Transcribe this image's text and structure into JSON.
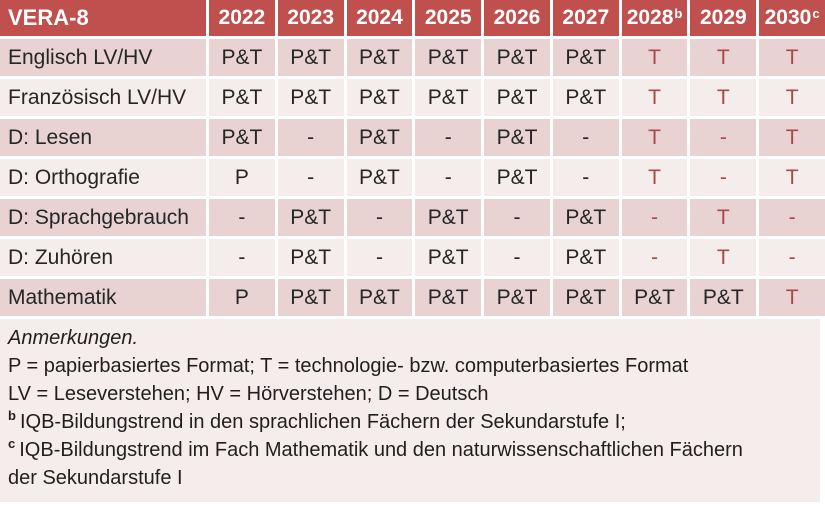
{
  "colors": {
    "header_bg": "#c0504d",
    "row_dark": "#e8d2d2",
    "row_light": "#f5ecec",
    "accent_red": "#a84a47",
    "text": "#262626"
  },
  "table": {
    "title_cell": "VERA-8",
    "columns": [
      {
        "label": "2022"
      },
      {
        "label": "2023"
      },
      {
        "label": "2024"
      },
      {
        "label": "2025"
      },
      {
        "label": "2026"
      },
      {
        "label": "2027"
      },
      {
        "label": "2028",
        "sup": "b"
      },
      {
        "label": "2029"
      },
      {
        "label": "2030",
        "sup": "c"
      }
    ],
    "rows": [
      {
        "label": "Englisch LV/HV",
        "cells": [
          {
            "t": "P&T"
          },
          {
            "t": "P&T"
          },
          {
            "t": "P&T"
          },
          {
            "t": "P&T"
          },
          {
            "t": "P&T"
          },
          {
            "t": "P&T"
          },
          {
            "t": "T",
            "red": true
          },
          {
            "t": "T",
            "red": true
          },
          {
            "t": "T",
            "red": true
          }
        ]
      },
      {
        "label": "Französisch LV/HV",
        "cells": [
          {
            "t": "P&T"
          },
          {
            "t": "P&T"
          },
          {
            "t": "P&T"
          },
          {
            "t": "P&T"
          },
          {
            "t": "P&T"
          },
          {
            "t": "P&T"
          },
          {
            "t": "T",
            "red": true
          },
          {
            "t": "T",
            "red": true
          },
          {
            "t": "T",
            "red": true
          }
        ]
      },
      {
        "label": "D: Lesen",
        "cells": [
          {
            "t": "P&T"
          },
          {
            "t": "-"
          },
          {
            "t": "P&T"
          },
          {
            "t": "-"
          },
          {
            "t": "P&T"
          },
          {
            "t": "-"
          },
          {
            "t": "T",
            "red": true
          },
          {
            "t": "-",
            "red": true
          },
          {
            "t": "T",
            "red": true
          }
        ]
      },
      {
        "label": "D: Orthografie",
        "cells": [
          {
            "t": "P"
          },
          {
            "t": "-"
          },
          {
            "t": "P&T"
          },
          {
            "t": "-"
          },
          {
            "t": "P&T"
          },
          {
            "t": "-"
          },
          {
            "t": "T",
            "red": true
          },
          {
            "t": "-",
            "red": true
          },
          {
            "t": "T",
            "red": true
          }
        ]
      },
      {
        "label": "D: Sprachgebrauch",
        "cells": [
          {
            "t": "-"
          },
          {
            "t": "P&T"
          },
          {
            "t": "-"
          },
          {
            "t": "P&T"
          },
          {
            "t": "-"
          },
          {
            "t": "P&T"
          },
          {
            "t": "-",
            "red": true
          },
          {
            "t": "T",
            "red": true
          },
          {
            "t": "-",
            "red": true
          }
        ]
      },
      {
        "label": "D: Zuhören",
        "cells": [
          {
            "t": "-"
          },
          {
            "t": "P&T"
          },
          {
            "t": "-"
          },
          {
            "t": "P&T"
          },
          {
            "t": "-"
          },
          {
            "t": "P&T"
          },
          {
            "t": "-",
            "red": true
          },
          {
            "t": "T",
            "red": true
          },
          {
            "t": "-",
            "red": true
          }
        ]
      },
      {
        "label": "Mathematik",
        "cells": [
          {
            "t": "P"
          },
          {
            "t": "P&T"
          },
          {
            "t": "P&T"
          },
          {
            "t": "P&T"
          },
          {
            "t": "P&T"
          },
          {
            "t": "P&T"
          },
          {
            "t": "P&T"
          },
          {
            "t": "P&T"
          },
          {
            "t": "T",
            "red": true
          }
        ]
      }
    ]
  },
  "notes": {
    "heading": "Anmerkungen.",
    "format_legend": "P = papierbasiertes Format; T = technologie- bzw. computerbasiertes Format",
    "abbr_legend": "LV = Leseverstehen; HV = Hörverstehen; D = Deutsch",
    "footnote_b": {
      "marker": "b",
      "text": "IQB-Bildungstrend in den sprachlichen Fächern der Sekundarstufe I;"
    },
    "footnote_c": {
      "marker": "c",
      "text": "IQB-Bildungstrend im Fach Mathematik und den naturwissenschaftlichen Fächern der Sekundarstufe I"
    }
  }
}
